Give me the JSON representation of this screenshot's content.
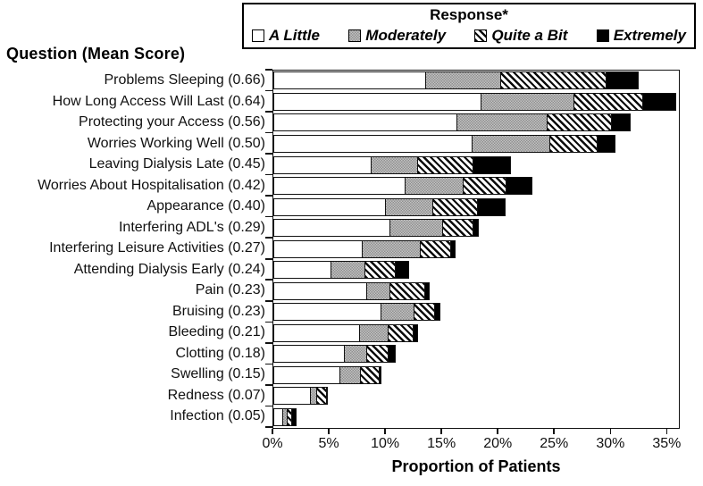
{
  "chart_data": {
    "type": "bar",
    "orientation": "horizontal",
    "stacked": true,
    "axis_title_left": "Question (Mean Score)",
    "xlabel": "Proportion of Patients",
    "x_ticks": [
      "0%",
      "5%",
      "10%",
      "15%",
      "20%",
      "25%",
      "30%",
      "35%"
    ],
    "x_tick_values": [
      0,
      5,
      10,
      15,
      20,
      25,
      30,
      35
    ],
    "xlim": [
      0,
      36
    ],
    "grid": false,
    "legend": {
      "title": "Response*",
      "position": "top"
    },
    "categories": [
      "Problems Sleeping (0.66)",
      "How Long Access Will Last (0.64)",
      "Protecting your Access (0.56)",
      "Worries Working Well (0.50)",
      "Leaving Dialysis Late (0.45)",
      "Worries About Hospitalisation (0.42)",
      "Appearance (0.40)",
      "Interfering ADL's (0.29)",
      "Interfering Leisure Activities (0.27)",
      "Attending Dialysis Early (0.24)",
      "Pain (0.23)",
      "Bruising (0.23)",
      "Bleeding (0.21)",
      "Clotting (0.18)",
      "Swelling (0.15)",
      "Redness (0.07)",
      "Infection (0.05)"
    ],
    "series": [
      {
        "name": "A Little",
        "style": "white",
        "values": [
          13.4,
          18.3,
          16.2,
          17.5,
          8.6,
          11.6,
          9.8,
          10.2,
          7.8,
          5.0,
          8.2,
          9.4,
          7.5,
          6.2,
          5.8,
          3.2,
          0.7
        ]
      },
      {
        "name": "Moderately",
        "style": "gray",
        "values": [
          6.7,
          8.3,
          8.0,
          6.9,
          4.1,
          5.1,
          4.2,
          4.7,
          5.1,
          3.0,
          2.0,
          3.0,
          2.6,
          2.0,
          1.8,
          0.5,
          0.4
        ]
      },
      {
        "name": "Quite a Bit",
        "style": "hatch",
        "values": [
          9.3,
          6.1,
          5.7,
          4.2,
          4.9,
          3.8,
          4.0,
          2.7,
          2.7,
          2.7,
          3.1,
          1.8,
          2.2,
          1.9,
          1.7,
          0.9,
          0.4
        ]
      },
      {
        "name": "Extremely",
        "style": "black",
        "values": [
          2.9,
          2.9,
          1.7,
          1.6,
          3.3,
          2.3,
          2.5,
          0.5,
          0.4,
          1.2,
          0.4,
          0.5,
          0.4,
          0.6,
          0.1,
          0.1,
          0.4
        ]
      }
    ],
    "colors": {
      "segment_white": "#ffffff",
      "segment_gray": "#a9a9a9",
      "segment_black": "#000000",
      "outline": "#111111",
      "background": "#ffffff"
    }
  }
}
